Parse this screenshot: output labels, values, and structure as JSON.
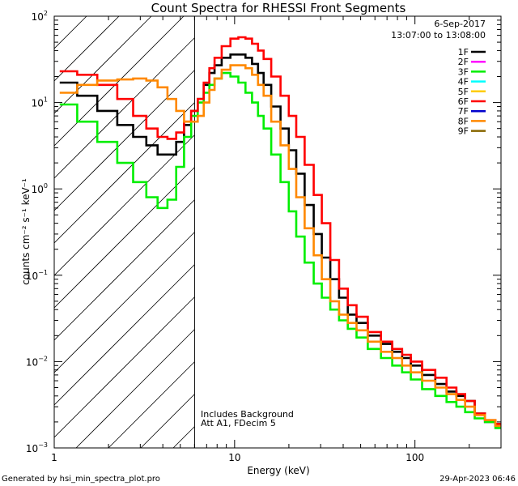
{
  "chart_data": {
    "type": "line",
    "title": "Count Spectra for RHESSI Front Segments",
    "xlabel": "Energy (keV)",
    "ylabel": "counts cm⁻² s⁻¹ keV⁻¹",
    "xscale": "log",
    "yscale": "log",
    "xlim": [
      1,
      300
    ],
    "ylim": [
      0.001,
      100
    ],
    "x_ticks": [
      {
        "value": 1,
        "label": "1"
      },
      {
        "value": 10,
        "label": "10"
      },
      {
        "value": 100,
        "label": "100"
      }
    ],
    "y_ticks": [
      {
        "value": 0.001,
        "base": "10",
        "exp": "−3"
      },
      {
        "value": 0.01,
        "base": "10",
        "exp": "−2"
      },
      {
        "value": 0.1,
        "base": "10",
        "exp": "−1"
      },
      {
        "value": 1,
        "base": "10",
        "exp": "0"
      },
      {
        "value": 10,
        "base": "10",
        "exp": "1"
      },
      {
        "value": 100,
        "base": "10",
        "exp": "2"
      }
    ],
    "date": "6-Sep-2017",
    "time_range": "13:07:00 to 13:08:00",
    "hatched_region_kev": [
      1,
      6
    ],
    "annotations": [
      "Includes Background",
      "Att A1, FDecim 5"
    ],
    "legend": [
      {
        "name": "1F",
        "color": "#000000",
        "has_data": true
      },
      {
        "name": "2F",
        "color": "#ff00ff",
        "has_data": false
      },
      {
        "name": "3F",
        "color": "#00ee00",
        "has_data": true
      },
      {
        "name": "4F",
        "color": "#00ffff",
        "has_data": false
      },
      {
        "name": "5F",
        "color": "#ffcc00",
        "has_data": false
      },
      {
        "name": "6F",
        "color": "#ff0000",
        "has_data": true
      },
      {
        "name": "7F",
        "color": "#0000cc",
        "has_data": false
      },
      {
        "name": "8F",
        "color": "#ff8800",
        "has_data": true
      },
      {
        "name": "9F",
        "color": "#886600",
        "has_data": false
      }
    ],
    "series": [
      {
        "name": "1F",
        "color": "#000000",
        "x": [
          1.2,
          1.5,
          2.0,
          2.5,
          3.0,
          3.5,
          4.0,
          4.5,
          5.0,
          5.5,
          6.0,
          6.5,
          7.0,
          7.5,
          8.0,
          9.0,
          10.0,
          11.0,
          12.0,
          13.0,
          14.0,
          15.0,
          17.0,
          19.0,
          21.0,
          23.0,
          26.0,
          29.0,
          32.0,
          36.0,
          40.0,
          45.0,
          50.0,
          60.0,
          70.0,
          80.0,
          90.0,
          100.0,
          120.0,
          140.0,
          160.0,
          180.0,
          200.0,
          230.0,
          260.0,
          300.0
        ],
        "y": [
          17,
          12,
          8,
          5.5,
          4,
          3.2,
          2.5,
          2.5,
          3.5,
          5.5,
          8,
          11,
          16,
          22,
          27,
          33,
          36,
          36,
          33,
          28,
          22,
          16,
          9,
          5,
          2.8,
          1.5,
          0.65,
          0.3,
          0.16,
          0.09,
          0.055,
          0.035,
          0.028,
          0.02,
          0.016,
          0.013,
          0.011,
          0.009,
          0.007,
          0.0055,
          0.0045,
          0.004,
          0.0035,
          0.0025,
          0.002,
          0.0018
        ]
      },
      {
        "name": "3F",
        "color": "#00ee00",
        "x": [
          1.2,
          1.5,
          2.0,
          2.5,
          3.0,
          3.5,
          4.0,
          4.5,
          5.0,
          5.5,
          6.0,
          6.5,
          7.0,
          7.5,
          8.0,
          9.0,
          10.0,
          11.0,
          12.0,
          13.0,
          14.0,
          15.0,
          17.0,
          19.0,
          21.0,
          23.0,
          26.0,
          29.0,
          32.0,
          36.0,
          40.0,
          45.0,
          50.0,
          60.0,
          70.0,
          80.0,
          90.0,
          100.0,
          120.0,
          140.0,
          160.0,
          180.0,
          200.0,
          230.0,
          260.0,
          300.0
        ],
        "y": [
          9.5,
          6,
          3.5,
          2,
          1.2,
          0.8,
          0.6,
          0.75,
          1.8,
          4,
          7,
          10,
          13,
          16,
          19,
          22,
          20,
          17,
          13,
          10,
          7,
          5,
          2.5,
          1.2,
          0.55,
          0.28,
          0.14,
          0.08,
          0.055,
          0.04,
          0.03,
          0.024,
          0.019,
          0.014,
          0.011,
          0.009,
          0.0075,
          0.0062,
          0.0048,
          0.004,
          0.0034,
          0.003,
          0.0026,
          0.0022,
          0.002,
          0.0017
        ]
      },
      {
        "name": "6F",
        "color": "#ff0000",
        "x": [
          1.2,
          1.5,
          2.0,
          2.5,
          3.0,
          3.5,
          4.0,
          4.5,
          5.0,
          5.5,
          6.0,
          6.5,
          7.0,
          7.5,
          8.0,
          9.0,
          10.0,
          11.0,
          12.0,
          13.0,
          14.0,
          15.0,
          17.0,
          19.0,
          21.0,
          23.0,
          26.0,
          29.0,
          32.0,
          36.0,
          40.0,
          45.0,
          50.0,
          60.0,
          70.0,
          80.0,
          90.0,
          100.0,
          120.0,
          140.0,
          160.0,
          180.0,
          200.0,
          230.0,
          260.0,
          300.0
        ],
        "y": [
          23,
          21,
          16,
          11,
          7,
          5,
          4,
          3.8,
          4.5,
          6,
          8,
          11,
          17,
          25,
          33,
          45,
          55,
          57,
          55,
          48,
          40,
          32,
          20,
          12,
          7,
          4,
          1.9,
          0.85,
          0.4,
          0.15,
          0.07,
          0.045,
          0.033,
          0.022,
          0.017,
          0.014,
          0.012,
          0.01,
          0.008,
          0.0065,
          0.005,
          0.0042,
          0.0035,
          0.0025,
          0.0021,
          0.0019
        ]
      },
      {
        "name": "8F",
        "color": "#ff8800",
        "x": [
          1.2,
          1.5,
          2.0,
          2.5,
          3.0,
          3.5,
          4.0,
          4.5,
          5.0,
          5.5,
          6.0,
          6.5,
          7.0,
          7.5,
          8.0,
          9.0,
          10.0,
          11.0,
          12.0,
          13.0,
          14.0,
          15.0,
          17.0,
          19.0,
          21.0,
          23.0,
          26.0,
          29.0,
          32.0,
          36.0,
          40.0,
          45.0,
          50.0,
          60.0,
          70.0,
          80.0,
          90.0,
          100.0,
          120.0,
          140.0,
          160.0,
          180.0,
          200.0,
          230.0,
          260.0,
          300.0
        ],
        "y": [
          13,
          16,
          18,
          18.5,
          19,
          18,
          15,
          11,
          8,
          6,
          6,
          7,
          10,
          14,
          19,
          24,
          27,
          27,
          25,
          21,
          16,
          12,
          6,
          3.2,
          1.7,
          0.8,
          0.35,
          0.17,
          0.09,
          0.05,
          0.035,
          0.028,
          0.023,
          0.017,
          0.013,
          0.011,
          0.009,
          0.0075,
          0.006,
          0.005,
          0.0042,
          0.0036,
          0.003,
          0.0024,
          0.0021,
          0.0018
        ]
      }
    ]
  },
  "footer": {
    "generated_by": "Generated by hsi_min_spectra_plot.pro",
    "timestamp": "29-Apr-2023 06:46"
  }
}
